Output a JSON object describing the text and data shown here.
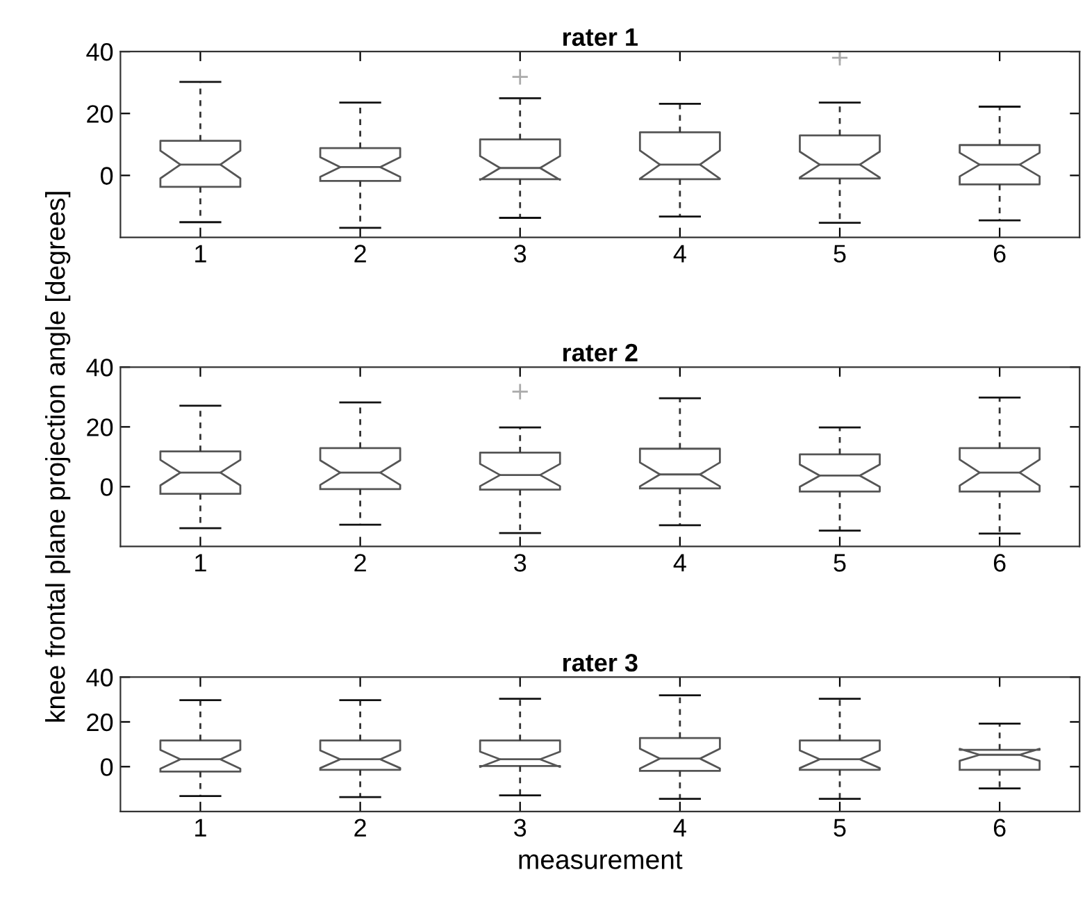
{
  "chart_data": [
    {
      "type": "box",
      "title": "rater 1",
      "categories": [
        "1",
        "2",
        "3",
        "4",
        "5",
        "6"
      ],
      "ylim": [
        -20,
        40
      ],
      "yticks": [
        0,
        20,
        40
      ],
      "grid": false,
      "legend": false,
      "boxes": [
        {
          "low": -15.1,
          "q1": -3.7,
          "median": 3.5,
          "q3": 11.2,
          "high": 30.2
        },
        {
          "low": -16.9,
          "q1": -1.8,
          "median": 2.7,
          "q3": 8.8,
          "high": 23.5
        },
        {
          "low": -13.7,
          "q1": -1.2,
          "median": 2.4,
          "q3": 11.6,
          "high": 24.9,
          "outliers": [
            31.8
          ]
        },
        {
          "low": -13.3,
          "q1": -1.2,
          "median": 3.5,
          "q3": 13.9,
          "high": 23.1
        },
        {
          "low": -15.3,
          "q1": -1.0,
          "median": 3.5,
          "q3": 12.9,
          "high": 23.5,
          "outliers": [
            38
          ]
        },
        {
          "low": -14.5,
          "q1": -2.9,
          "median": 3.5,
          "q3": 9.8,
          "high": 22.2
        }
      ]
    },
    {
      "type": "box",
      "title": "rater 2",
      "ylabel": "knee frontal plane projection angle [degrees]",
      "categories": [
        "1",
        "2",
        "3",
        "4",
        "5",
        "6"
      ],
      "ylim": [
        -20,
        40
      ],
      "yticks": [
        0,
        20,
        40
      ],
      "grid": false,
      "legend": false,
      "boxes": [
        {
          "low": -13.9,
          "q1": -2.4,
          "median": 4.7,
          "q3": 11.8,
          "high": 27.1
        },
        {
          "low": -12.7,
          "q1": -0.8,
          "median": 4.7,
          "q3": 12.9,
          "high": 28.2
        },
        {
          "low": -15.5,
          "q1": -1.0,
          "median": 3.9,
          "q3": 11.4,
          "high": 19.8,
          "outliers": [
            31.8
          ]
        },
        {
          "low": -12.9,
          "q1": -0.6,
          "median": 4.1,
          "q3": 12.7,
          "high": 29.6
        },
        {
          "low": -14.7,
          "q1": -1.6,
          "median": 3.7,
          "q3": 10.8,
          "high": 19.8
        },
        {
          "low": -15.7,
          "q1": -1.6,
          "median": 4.7,
          "q3": 12.9,
          "high": 29.8
        }
      ]
    },
    {
      "type": "box",
      "title": "rater 3",
      "xlabel": "measurement",
      "categories": [
        "1",
        "2",
        "3",
        "4",
        "5",
        "6"
      ],
      "ylim": [
        -20,
        40
      ],
      "yticks": [
        0,
        20,
        40
      ],
      "grid": false,
      "legend": false,
      "boxes": [
        {
          "low": -13.1,
          "q1": -2.2,
          "median": 3.3,
          "q3": 11.7,
          "high": 29.7
        },
        {
          "low": -13.6,
          "q1": -1.4,
          "median": 3.3,
          "q3": 11.7,
          "high": 29.7
        },
        {
          "low": -12.8,
          "q1": 0.3,
          "median": 3.3,
          "q3": 11.7,
          "high": 30.3
        },
        {
          "low": -14.4,
          "q1": -1.9,
          "median": 3.6,
          "q3": 12.8,
          "high": 31.9
        },
        {
          "low": -14.4,
          "q1": -1.4,
          "median": 3.3,
          "q3": 11.7,
          "high": 30.3
        },
        {
          "low": -9.7,
          "q1": -1.4,
          "median": 5.3,
          "q3": 7.5,
          "high": 19.2
        }
      ]
    }
  ]
}
